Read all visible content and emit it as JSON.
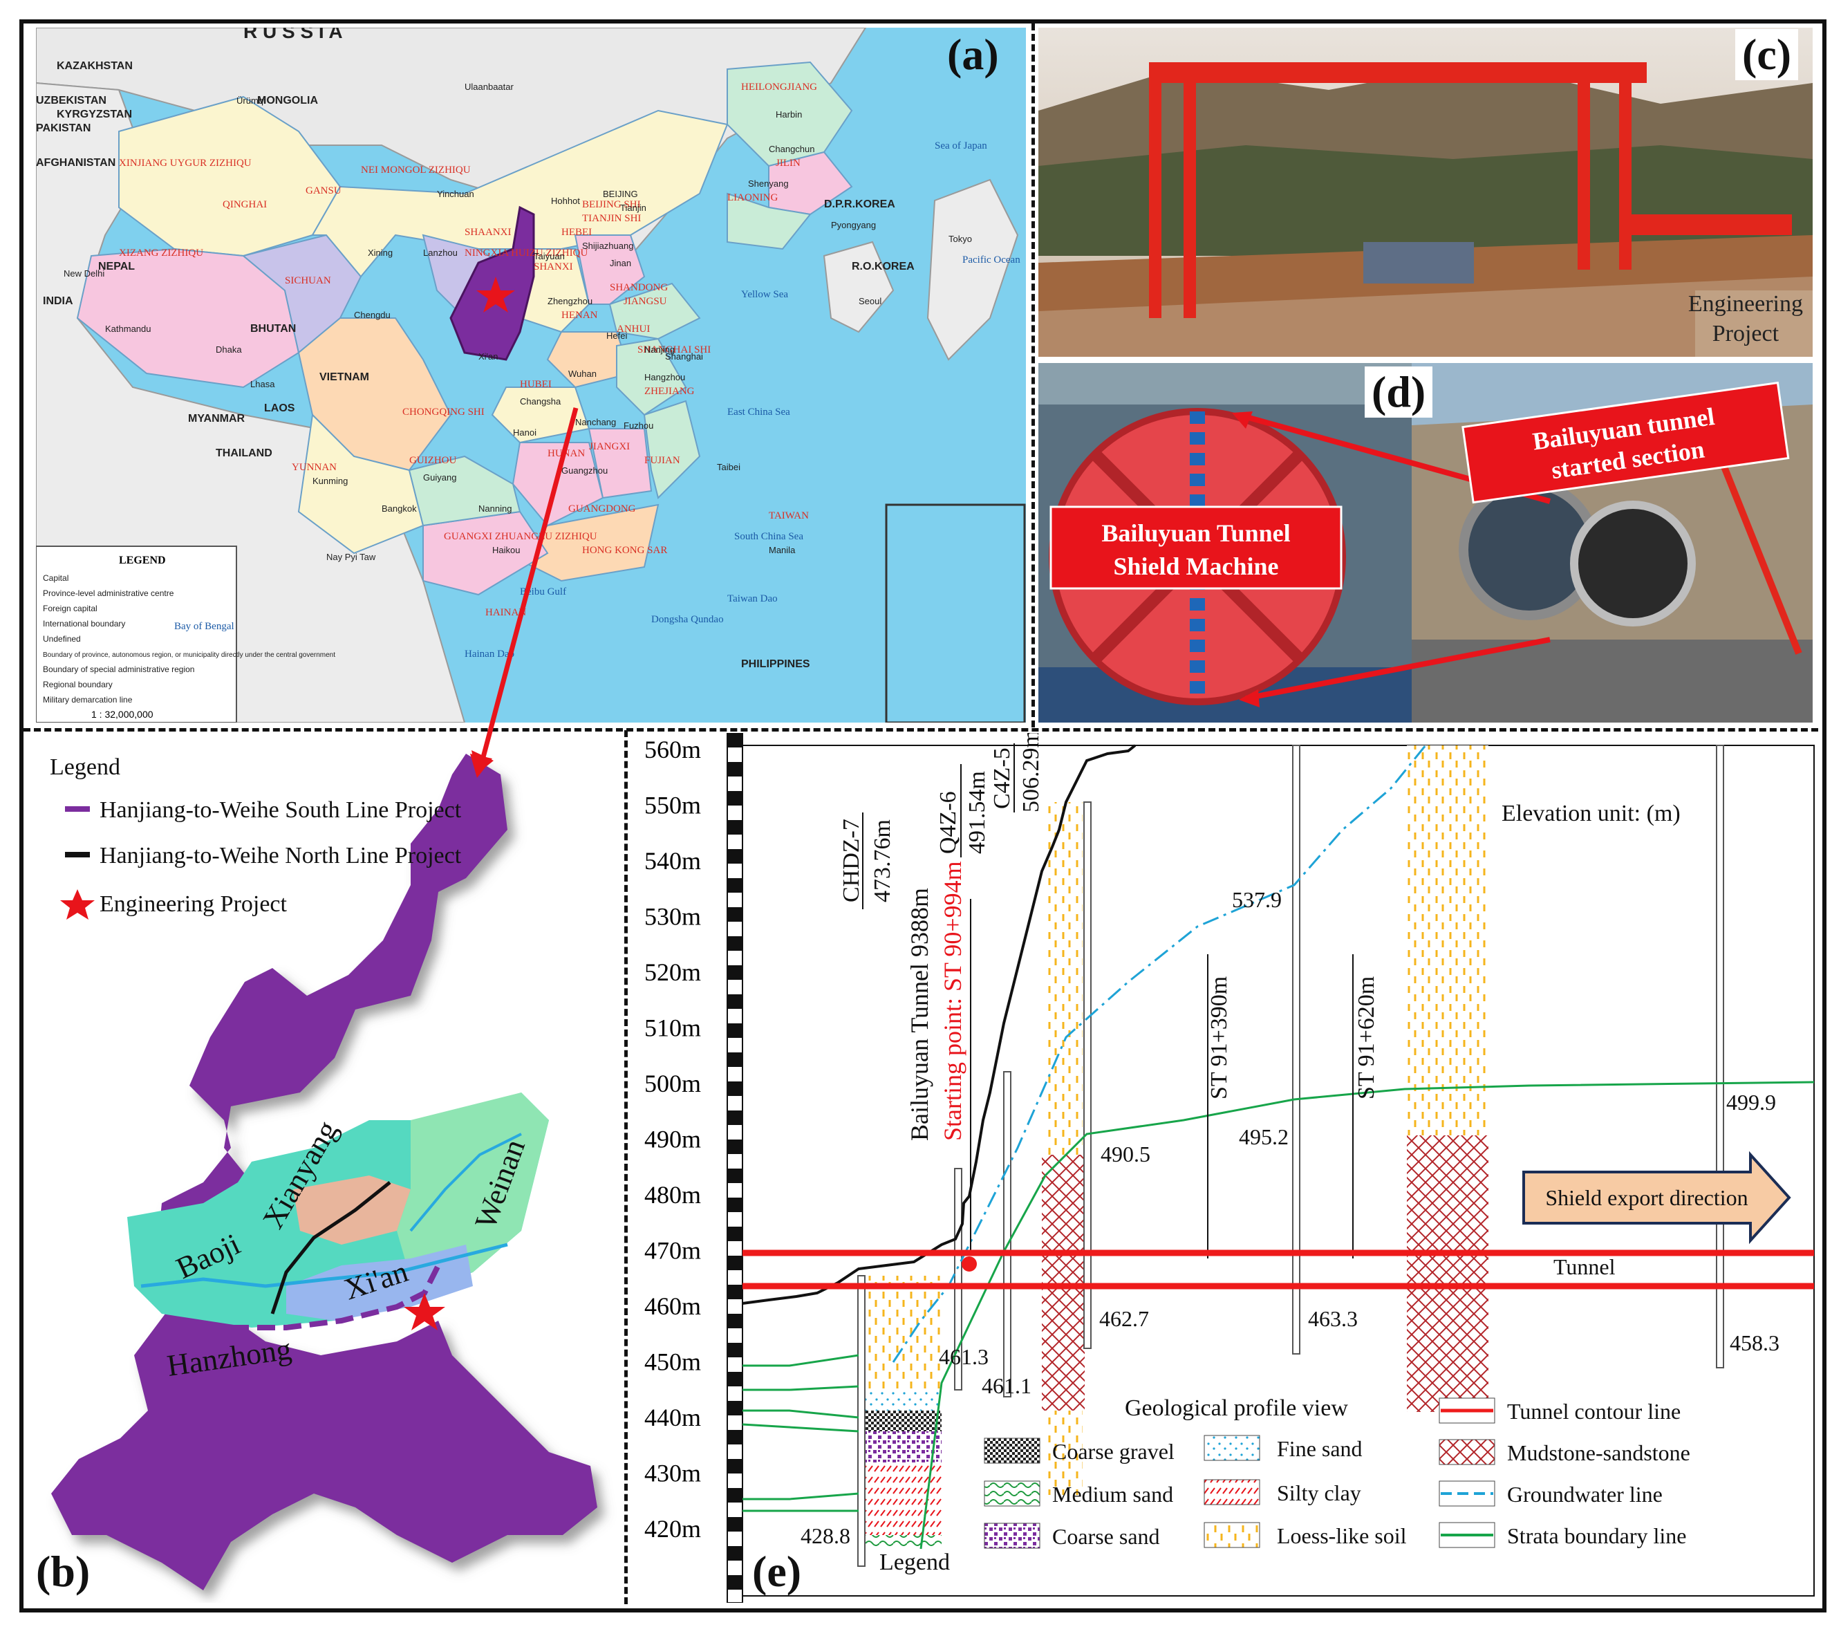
{
  "panels": {
    "a": {
      "tag": "(a)"
    },
    "b": {
      "tag": "(b)"
    },
    "c": {
      "tag": "(c)",
      "caption_line1": "Engineering",
      "caption_line2": "Project"
    },
    "d": {
      "tag": "(d)",
      "shield_label_1": "Bailuyuan Tunnel",
      "shield_label_2": "Shield Machine",
      "section_label_1": "Bailuyuan tunnel",
      "section_label_2": "started section"
    },
    "e": {
      "tag": "(e)"
    }
  },
  "map_a": {
    "countries": [
      "R U S S I A",
      "KAZAKHSTAN",
      "MONGOLIA",
      "KYRGYZSTAN",
      "INDIA",
      "NEPAL",
      "BHUTAN",
      "MYANMAR",
      "LAOS",
      "VIETNAM",
      "THAILAND",
      "PHILIPPINES",
      "D.P.R.KOREA",
      "R.O.KOREA",
      "PAKISTAN",
      "AFGHANISTAN",
      "UZBEKISTAN"
    ],
    "regions": [
      "XINJIANG UYGUR ZIZHIQU",
      "NEI MONGOL ZIZHIQU",
      "XIZANG ZIZHIQU",
      "QINGHAI",
      "GANSU",
      "SHAANXI",
      "SICHUAN",
      "HEILONGJIANG",
      "JILIN",
      "LIAONING",
      "HEBEI",
      "SHANXI",
      "SHANDONG",
      "HENAN",
      "HUBEI",
      "ANHUI",
      "JIANGSU",
      "HUNAN",
      "JIANGXI",
      "ZHEJIANG",
      "FUJIAN",
      "GUANGDONG",
      "GUANGXI ZHUANGZU ZIZHIQU",
      "YUNNAN",
      "GUIZHOU",
      "CHONGQING SHI",
      "TAIWAN",
      "HAINAN",
      "BEIJING SHI",
      "TIANJIN SHI",
      "SHANGHAI SHI",
      "HONG KONG SAR",
      "NINGXIA HUIZU ZIZHIQU"
    ],
    "cities": [
      "Ürümqi",
      "Ulaanbaatar",
      "Harbin",
      "Changchun",
      "Shenyang",
      "Hohhot",
      "BEIJING",
      "Tianjin",
      "Shijiazhuang",
      "Taiyuan",
      "Yinchuan",
      "Lanzhou",
      "Xining",
      "Jinan",
      "Zhengzhou",
      "Hefei",
      "Nanjing",
      "Shanghai",
      "Hangzhou",
      "Wuhan",
      "Chengdu",
      "Changsha",
      "Nanchang",
      "Fuzhou",
      "Taibei",
      "Guangzhou",
      "Nanning",
      "Kunming",
      "Guiyang",
      "Haikou",
      "Lhasa",
      "Xi'an",
      "Seoul",
      "Tokyo",
      "Pyongyang",
      "New Delhi",
      "Kathmandu",
      "Dhaka",
      "Hanoi",
      "Bangkok",
      "Manila",
      "Nay Pyi Taw"
    ],
    "seas": [
      "Sea of Japan",
      "Yellow Sea",
      "East China Sea",
      "South China Sea",
      "Bay of Bengal",
      "Pacific Ocean",
      "Beibu Gulf",
      "Taiwan Dao",
      "Hainan Dao",
      "Dongsha Qundao"
    ],
    "legend_title": "LEGEND",
    "legend_items": [
      "Capital",
      "Province-level administrative centre",
      "Foreign capital",
      "International boundary",
      "Undefined",
      "Boundary of province, autonomous region, or municipality directly under the central government",
      "Boundary of special administrative region",
      "Regional boundary",
      "Military demarcation line"
    ],
    "scale": "1 : 32,000,000"
  },
  "map_b": {
    "legend_title": "Legend",
    "legend_items": [
      {
        "label": "Hanjiang-to-Weihe South Line Project",
        "color": "#7b2d9e"
      },
      {
        "label": "Hanjiang-to-Weihe North Line Project",
        "color": "#111111"
      },
      {
        "label": "Engineering Project",
        "color": "#e8141b"
      }
    ],
    "cities": [
      "Baoji",
      "Xianyang",
      "Weinan",
      "Xi'an",
      "Hanzhong"
    ]
  },
  "profile_e": {
    "y_ticks": [
      "560m",
      "550m",
      "540m",
      "530m",
      "520m",
      "510m",
      "500m",
      "490m",
      "480m",
      "470m",
      "460m",
      "450m",
      "440m",
      "430m",
      "420m"
    ],
    "elevation_unit": "Elevation unit: (m)",
    "boreholes": [
      {
        "name": "CHDZ-7",
        "elev": "473.76m",
        "bottom": "428.8"
      },
      {
        "name": "Q4Z-6",
        "elev": "491.54m",
        "bottom": "461.3"
      },
      {
        "name": "C4Z-5",
        "elev": "506.29m",
        "bottom": "461.1"
      }
    ],
    "tunnel_name": "Bailuyuan Tunnel 9388m",
    "starting_point": "Starting point: ST 90+994m",
    "stations": [
      "ST 91+390m",
      "ST 91+620m"
    ],
    "values": [
      "537.9",
      "490.5",
      "495.2",
      "499.9",
      "462.7",
      "463.3",
      "458.3"
    ],
    "direction": "Shield export direction",
    "tunnel_label": "Tunnel",
    "profile_title": "Geological profile view",
    "legend_label": "Legend",
    "legend": [
      {
        "label": "Coarse gravel"
      },
      {
        "label": "Medium sand"
      },
      {
        "label": "Coarse sand"
      },
      {
        "label": "Fine sand"
      },
      {
        "label": "Silty clay"
      },
      {
        "label": "Loess-like soil"
      },
      {
        "label": "Tunnel contour line"
      },
      {
        "label": "Mudstone-sandstone"
      },
      {
        "label": "Groundwater line"
      },
      {
        "label": "Strata boundary line"
      }
    ],
    "colors": {
      "tunnel": "#ee1b1b",
      "groundwater": "#1ea3d6",
      "strata": "#17a54a",
      "loess": "#f5b51d",
      "mudstone": "#b3262a"
    }
  }
}
